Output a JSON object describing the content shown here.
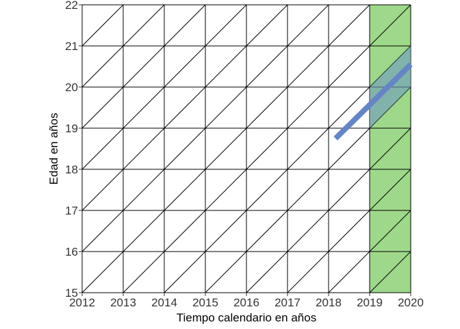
{
  "chart_data": {
    "type": "lexis_diagram",
    "xlabel": "Tiempo calendario en años",
    "ylabel": "Edad en años",
    "xlim": [
      2012,
      2020
    ],
    "ylim": [
      15,
      22
    ],
    "x_ticks": [
      "2012",
      "2013",
      "2014",
      "2015",
      "2016",
      "2017",
      "2018",
      "2019",
      "2020"
    ],
    "y_ticks": [
      "15",
      "16",
      "17",
      "18",
      "19",
      "20",
      "21",
      "22"
    ],
    "grid": true,
    "diagonals": true,
    "highlight_period": {
      "from": 2019,
      "to": 2020,
      "color": "#9ed88a"
    },
    "highlight_cohort_band": {
      "from_year": 2019,
      "to_year": 2020,
      "age_at_start_low": 19,
      "age_at_start_high": 20,
      "color": "#6f9bc0"
    },
    "lifeline": {
      "start": [
        2018.17,
        18.75
      ],
      "end": [
        2020,
        20.55
      ],
      "color": "#6585c5"
    },
    "colors": {
      "grid": "#000000",
      "tick_text": "#333333"
    }
  }
}
